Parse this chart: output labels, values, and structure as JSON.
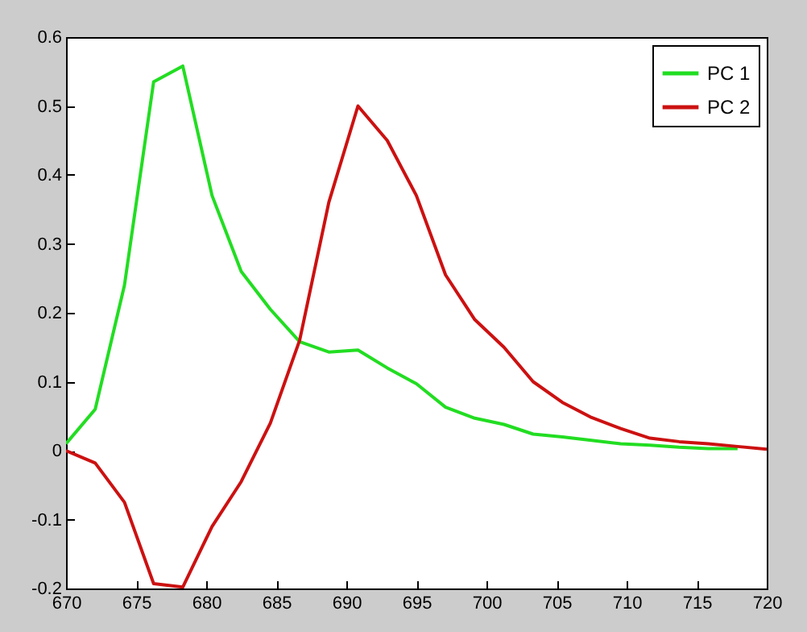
{
  "chart_data": {
    "type": "line",
    "x": [
      670,
      672.08,
      674.17,
      676.25,
      678.33,
      680.42,
      682.5,
      684.58,
      686.67,
      688.75,
      690.83,
      692.92,
      695,
      697.08,
      699.17,
      701.25,
      703.33,
      705.42,
      707.5,
      709.58,
      711.67,
      713.75,
      715.83,
      717.92,
      720
    ],
    "series": [
      {
        "name": "PC 1",
        "color": "#22dd22",
        "values": [
          0.01,
          0.06,
          0.24,
          0.535,
          0.558,
          0.37,
          0.26,
          0.205,
          0.158,
          0.143,
          0.146,
          0.12,
          0.097,
          0.063,
          0.047,
          0.038,
          0.024,
          0.02,
          0.015,
          0.01,
          0.008,
          0.005,
          0.003,
          0.003,
          null
        ]
      },
      {
        "name": "PC 2",
        "color": "#cc1111",
        "values": [
          0,
          -0.018,
          -0.075,
          -0.193,
          -0.198,
          -0.11,
          -0.045,
          0.04,
          0.16,
          0.36,
          0.5,
          0.45,
          0.37,
          0.255,
          0.19,
          0.15,
          0.1,
          0.07,
          0.048,
          0.032,
          0.018,
          0.013,
          0.01,
          0.006,
          0.002
        ]
      }
    ],
    "xlim": [
      670,
      720
    ],
    "xticks": [
      670,
      675,
      680,
      685,
      690,
      695,
      700,
      705,
      710,
      715,
      720
    ],
    "ylim": [
      -0.2,
      0.6
    ],
    "yticks": [
      -0.2,
      -0.1,
      0,
      0.1,
      0.2,
      0.3,
      0.4,
      0.5,
      0.6
    ],
    "legend": "top right",
    "grid": false,
    "line_style": "solid"
  }
}
